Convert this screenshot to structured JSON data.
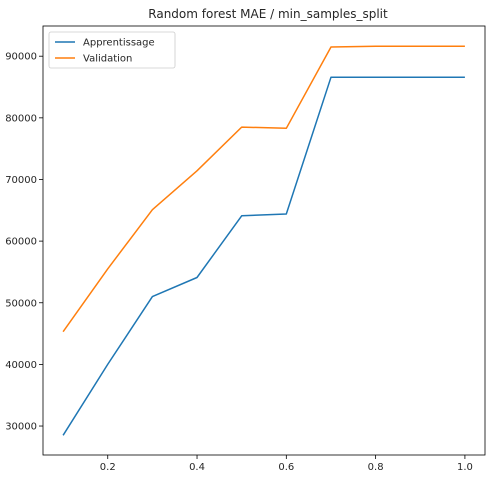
{
  "chart_data": {
    "type": "line",
    "title": "Random forest MAE / min_samples_split",
    "xlabel": "",
    "ylabel": "",
    "x": [
      0.1,
      0.2,
      0.3,
      0.4,
      0.5,
      0.6,
      0.7,
      0.8,
      0.9,
      1.0
    ],
    "series": [
      {
        "name": "Apprentissage",
        "color": "#1f77b4",
        "values": [
          28500,
          40000,
          51000,
          54100,
          64100,
          64400,
          86600,
          86600,
          86600,
          86600
        ]
      },
      {
        "name": "Validation",
        "color": "#ff7f0e",
        "values": [
          45300,
          55500,
          65100,
          71400,
          78500,
          78300,
          91500,
          91600,
          91600,
          91600
        ]
      }
    ],
    "xlim": [
      0.055,
      1.045
    ],
    "ylim": [
      25300,
      94900
    ],
    "x_ticks": [
      0.2,
      0.4,
      0.6,
      0.8,
      1.0
    ],
    "x_tick_labels": [
      "0.2",
      "0.4",
      "0.6",
      "0.8",
      "1.0"
    ],
    "y_ticks": [
      30000,
      40000,
      50000,
      60000,
      70000,
      80000,
      90000
    ],
    "y_tick_labels": [
      "30000",
      "40000",
      "50000",
      "60000",
      "70000",
      "80000",
      "90000"
    ],
    "grid": false,
    "legend_position": "upper left"
  }
}
